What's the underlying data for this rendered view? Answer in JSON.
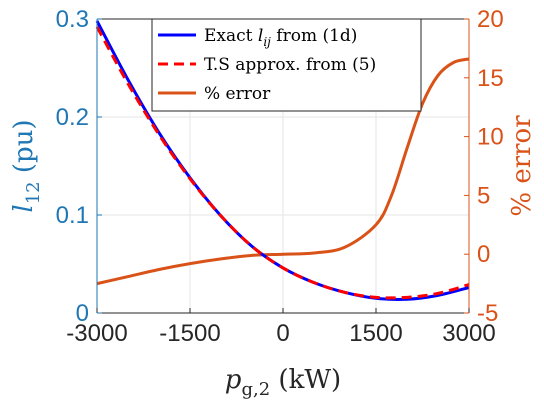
{
  "chart_data": {
    "type": "line",
    "grid": true,
    "legend_placement": "top-center",
    "colors": {
      "left_axis": "#1f77b4",
      "right_axis": "#d95319",
      "axis_dark": "#262626"
    },
    "x": {
      "label": "p_{g,2} (kW)",
      "label_main": "p",
      "label_sub": "g,2",
      "label_units": " (kW)",
      "lim": [
        -3000,
        3000
      ],
      "ticks": [
        -3000,
        -1500,
        0,
        1500,
        3000
      ],
      "tick_labels": [
        "-3000",
        "-1500",
        "0",
        "1500",
        "3000"
      ]
    },
    "y_left": {
      "label": "l_12 (pu)",
      "label_main": "l",
      "label_sub": "12",
      "label_units": " (pu)",
      "lim": [
        0,
        0.3
      ],
      "ticks": [
        0,
        0.1,
        0.2,
        0.3
      ],
      "tick_labels": [
        "0",
        "0.1",
        "0.2",
        "0.3"
      ]
    },
    "y_right": {
      "label": "% error",
      "lim": [
        -5,
        20
      ],
      "ticks": [
        -5,
        0,
        5,
        10,
        15,
        20
      ],
      "tick_labels": [
        "-5",
        "0",
        "5",
        "10",
        "15",
        "20"
      ]
    },
    "series": [
      {
        "name": "Exact l_ij from (1d)",
        "axis": "left",
        "color": "#0000ff",
        "style": "solid",
        "x": [
          -3000,
          -2500,
          -2000,
          -1500,
          -1000,
          -500,
          0,
          500,
          1000,
          1500,
          2000,
          2500,
          3000
        ],
        "y": [
          0.298,
          0.238,
          0.184,
          0.138,
          0.099,
          0.068,
          0.046,
          0.031,
          0.021,
          0.015,
          0.014,
          0.018,
          0.026
        ]
      },
      {
        "name": "T.S approx. from (5)",
        "axis": "left",
        "color": "#ff0000",
        "style": "dashed",
        "x": [
          -3000,
          -2500,
          -2000,
          -1500,
          -1000,
          -500,
          0,
          500,
          1000,
          1500,
          2000,
          2500,
          3000
        ],
        "y": [
          0.292,
          0.234,
          0.182,
          0.137,
          0.099,
          0.068,
          0.046,
          0.031,
          0.021,
          0.016,
          0.016,
          0.02,
          0.029
        ]
      },
      {
        "name": "% error",
        "axis": "right",
        "color": "#d95319",
        "style": "solid",
        "x": [
          -3000,
          -2500,
          -2000,
          -1500,
          -1000,
          -500,
          0,
          500,
          1000,
          1500,
          1750,
          2000,
          2250,
          2500,
          2750,
          3000
        ],
        "y": [
          -2.5,
          -1.9,
          -1.3,
          -0.8,
          -0.4,
          -0.1,
          0.0,
          0.1,
          0.6,
          2.5,
          5.0,
          9.0,
          12.8,
          15.2,
          16.3,
          16.6
        ]
      }
    ],
    "legend": [
      {
        "label_main": "Exact ",
        "label_var": "l",
        "label_sub": "ij",
        "label_tail": " from (1d)",
        "color": "#0000ff",
        "style": "solid"
      },
      {
        "label_main": "T.S approx. from (5)",
        "label_var": "",
        "label_sub": "",
        "label_tail": "",
        "color": "#ff0000",
        "style": "dashed"
      },
      {
        "label_main": "% error",
        "label_var": "",
        "label_sub": "",
        "label_tail": "",
        "color": "#d95319",
        "style": "solid"
      }
    ]
  }
}
